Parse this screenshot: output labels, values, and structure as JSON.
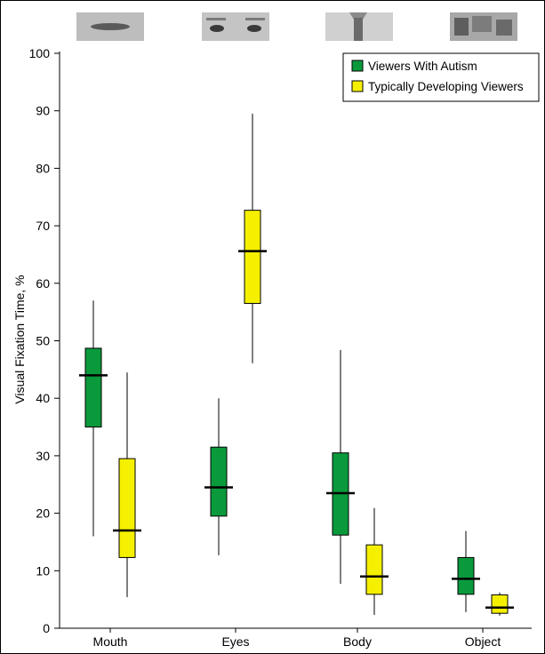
{
  "chart_data": {
    "type": "box",
    "categories": [
      "Mouth",
      "Eyes",
      "Body",
      "Object"
    ],
    "ylabel": "Visual Fixation Time, %",
    "ylim": [
      0,
      100
    ],
    "yticks": [
      0,
      10,
      20,
      30,
      40,
      50,
      60,
      70,
      80,
      90,
      100
    ],
    "grid": false,
    "legend_position": "top-right",
    "series": [
      {
        "name": "Viewers With Autism",
        "color": "#0a9a3c",
        "boxes": [
          {
            "min": 16,
            "q1": 35,
            "median": 44,
            "q3": 48.7,
            "max": 57
          },
          {
            "min": 12.7,
            "q1": 19.5,
            "median": 24.5,
            "q3": 31.5,
            "max": 40
          },
          {
            "min": 7.7,
            "q1": 16.2,
            "median": 23.5,
            "q3": 30.5,
            "max": 48.4
          },
          {
            "min": 2.8,
            "q1": 5.9,
            "median": 8.6,
            "q3": 12.3,
            "max": 16.9
          }
        ]
      },
      {
        "name": "Typically Developing Viewers",
        "color": "#f5f000",
        "boxes": [
          {
            "min": 5.4,
            "q1": 12.3,
            "median": 17,
            "q3": 29.5,
            "max": 44.5
          },
          {
            "min": 46.1,
            "q1": 56.5,
            "median": 65.6,
            "q3": 72.7,
            "max": 89.5
          },
          {
            "min": 2.3,
            "q1": 5.9,
            "median": 9,
            "q3": 14.5,
            "max": 20.9
          },
          {
            "min": 2.2,
            "q1": 2.6,
            "median": 3.6,
            "q3": 5.8,
            "max": 6.2
          }
        ]
      }
    ]
  },
  "category_images": [
    {
      "icon": "mouth-photo-icon"
    },
    {
      "icon": "eyes-photo-icon"
    },
    {
      "icon": "body-photo-icon"
    },
    {
      "icon": "object-photo-icon"
    }
  ]
}
